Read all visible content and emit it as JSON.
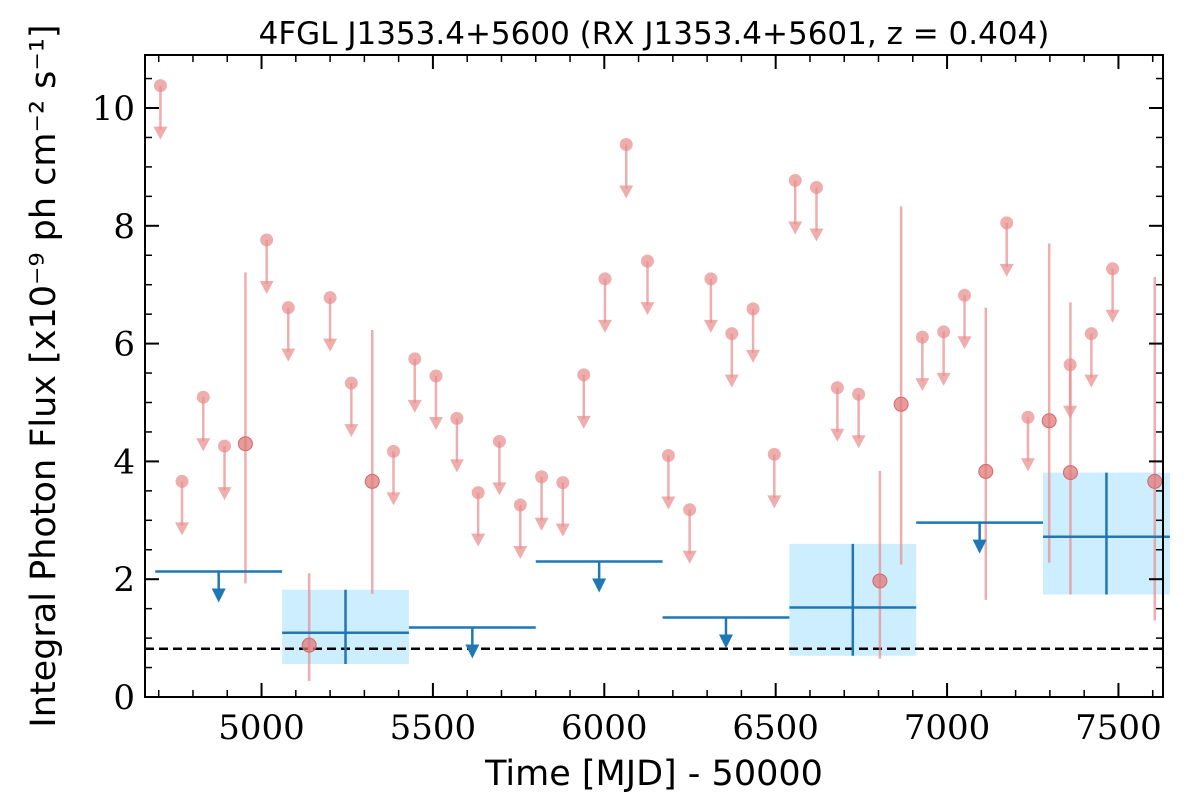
{
  "chart_data": {
    "type": "scatter",
    "title": "4FGL J1353.4+5600 (RX J1353.4+5601, z = 0.404)",
    "xlabel": "Time [MJD] - 50000",
    "ylabel": "Integral Photon Flux [x10⁻⁹ ph cm⁻² s⁻¹]",
    "xlim": [
      4660,
      7630
    ],
    "ylim": [
      0,
      10.9
    ],
    "x_ticks": [
      5000,
      5500,
      6000,
      6500,
      7000,
      7500
    ],
    "y_ticks": [
      0,
      2,
      4,
      6,
      8,
      10
    ],
    "x_tick_labels": [
      "5000",
      "5500",
      "6000",
      "6500",
      "7000",
      "7500"
    ],
    "y_tick_labels": [
      "0",
      "2",
      "4",
      "6",
      "8",
      "10"
    ],
    "reference_line": {
      "y": 0.82,
      "style": "dashed",
      "color": "#000000"
    },
    "short_bins": {
      "color": "#e88c8c",
      "upper_limits": [
        {
          "x": 4705,
          "y": 10.38
        },
        {
          "x": 4768,
          "y": 3.66
        },
        {
          "x": 4830,
          "y": 5.09
        },
        {
          "x": 4892,
          "y": 4.26
        },
        {
          "x": 5015,
          "y": 7.76
        },
        {
          "x": 5078,
          "y": 6.61
        },
        {
          "x": 5200,
          "y": 6.78
        },
        {
          "x": 5262,
          "y": 5.33
        },
        {
          "x": 5385,
          "y": 4.17
        },
        {
          "x": 5447,
          "y": 5.74
        },
        {
          "x": 5509,
          "y": 5.45
        },
        {
          "x": 5570,
          "y": 4.73
        },
        {
          "x": 5632,
          "y": 3.47
        },
        {
          "x": 5694,
          "y": 4.34
        },
        {
          "x": 5755,
          "y": 3.26
        },
        {
          "x": 5817,
          "y": 3.74
        },
        {
          "x": 5879,
          "y": 3.64
        },
        {
          "x": 5940,
          "y": 5.47
        },
        {
          "x": 6002,
          "y": 7.1
        },
        {
          "x": 6064,
          "y": 9.38
        },
        {
          "x": 6126,
          "y": 7.4
        },
        {
          "x": 6187,
          "y": 4.1
        },
        {
          "x": 6249,
          "y": 3.18
        },
        {
          "x": 6311,
          "y": 7.1
        },
        {
          "x": 6372,
          "y": 6.17
        },
        {
          "x": 6434,
          "y": 6.59
        },
        {
          "x": 6496,
          "y": 4.12
        },
        {
          "x": 6557,
          "y": 8.77
        },
        {
          "x": 6619,
          "y": 8.65
        },
        {
          "x": 6680,
          "y": 5.25
        },
        {
          "x": 6742,
          "y": 5.14
        },
        {
          "x": 6928,
          "y": 6.11
        },
        {
          "x": 6990,
          "y": 6.2
        },
        {
          "x": 7051,
          "y": 6.82
        },
        {
          "x": 7174,
          "y": 8.05
        },
        {
          "x": 7236,
          "y": 4.75
        },
        {
          "x": 7359,
          "y": 5.64
        },
        {
          "x": 7421,
          "y": 6.17
        },
        {
          "x": 7483,
          "y": 7.27
        }
      ],
      "detections": [
        {
          "x": 4953,
          "y": 4.3,
          "ylow": 1.93,
          "yhigh": 7.21
        },
        {
          "x": 5139,
          "y": 0.88,
          "ylow": 0.27,
          "yhigh": 2.1
        },
        {
          "x": 5323,
          "y": 3.66,
          "ylow": 1.75,
          "yhigh": 6.23
        },
        {
          "x": 6804,
          "y": 1.97,
          "ylow": 0.65,
          "yhigh": 3.84
        },
        {
          "x": 6866,
          "y": 4.97,
          "ylow": 2.25,
          "yhigh": 8.33
        },
        {
          "x": 7113,
          "y": 3.83,
          "ylow": 1.65,
          "yhigh": 6.61
        },
        {
          "x": 7298,
          "y": 4.69,
          "ylow": 2.28,
          "yhigh": 7.7
        },
        {
          "x": 7360,
          "y": 3.81,
          "ylow": 1.74,
          "yhigh": 6.7
        },
        {
          "x": 7606,
          "y": 3.66,
          "ylow": 1.3,
          "yhigh": 7.13
        }
      ]
    },
    "long_bins": {
      "color": "#1f77b4",
      "band_color": "#cceeff",
      "upper_limits": [
        {
          "x0": 4690,
          "x1": 5060,
          "y": 2.13
        },
        {
          "x0": 5430,
          "x1": 5800,
          "y": 1.18
        },
        {
          "x0": 5800,
          "x1": 6170,
          "y": 2.3
        },
        {
          "x0": 6170,
          "x1": 6540,
          "y": 1.35
        },
        {
          "x0": 6910,
          "x1": 7280,
          "y": 2.96
        }
      ],
      "detections": [
        {
          "x0": 5060,
          "x1": 5430,
          "y": 1.09,
          "ylow": 0.56,
          "yhigh": 1.82
        },
        {
          "x0": 6540,
          "x1": 6910,
          "y": 1.52,
          "ylow": 0.7,
          "yhigh": 2.6
        },
        {
          "x0": 7280,
          "x1": 7650,
          "y": 2.72,
          "ylow": 1.74,
          "yhigh": 3.81
        }
      ]
    }
  }
}
